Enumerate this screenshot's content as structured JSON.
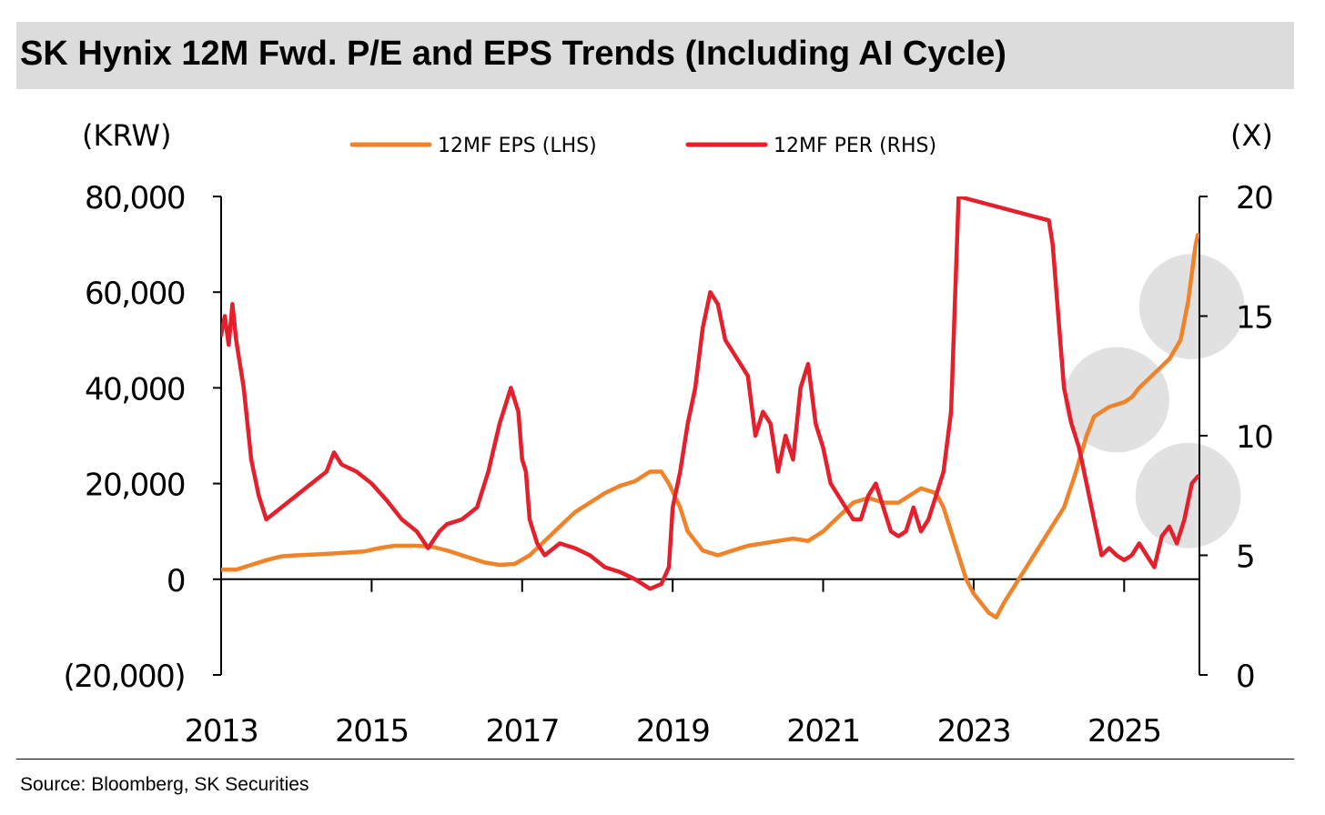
{
  "title": "SK Hynix 12M Fwd. P/E and EPS Trends (Including AI Cycle)",
  "source": "Source: Bloomberg, SK Securities",
  "colors": {
    "eps": "#f0822a",
    "per": "#e3202c",
    "highlight": "#c8c8c8"
  },
  "chart_data": {
    "type": "line",
    "title": "SK Hynix 12M Fwd. P/E and EPS Trends (Including AI Cycle)",
    "left_axis": {
      "unit_label": "(KRW)",
      "range": [
        -20000,
        80000
      ],
      "tick_values": [
        -20000,
        0,
        20000,
        40000,
        60000,
        80000
      ],
      "tick_labels": [
        "(20,000)",
        "0",
        "20,000",
        "40,000",
        "60,000",
        "80,000"
      ]
    },
    "right_axis": {
      "unit_label": "(X)",
      "range": [
        0,
        20
      ],
      "tick_values": [
        0,
        5,
        10,
        15,
        20
      ],
      "tick_labels": [
        "0",
        "5",
        "10",
        "15",
        "20"
      ]
    },
    "x_axis": {
      "range": [
        2013.0,
        2026.0
      ],
      "tick_values": [
        2013,
        2015,
        2017,
        2019,
        2021,
        2023,
        2025
      ],
      "tick_labels": [
        "2013",
        "2015",
        "2017",
        "2019",
        "2021",
        "2023",
        "2025"
      ]
    },
    "legend": [
      "12MF EPS (LHS)",
      "12MF PER (RHS)"
    ],
    "legend_position": "top-center",
    "series": [
      {
        "name": "12MF EPS (LHS)",
        "axis": "left",
        "points": [
          [
            2013.0,
            2000
          ],
          [
            2013.2,
            2000
          ],
          [
            2013.4,
            3000
          ],
          [
            2013.6,
            4000
          ],
          [
            2013.8,
            4800
          ],
          [
            2014.0,
            5000
          ],
          [
            2014.3,
            5200
          ],
          [
            2014.6,
            5500
          ],
          [
            2014.9,
            5800
          ],
          [
            2015.1,
            6500
          ],
          [
            2015.3,
            7000
          ],
          [
            2015.6,
            7000
          ],
          [
            2015.8,
            6800
          ],
          [
            2016.0,
            6000
          ],
          [
            2016.3,
            4500
          ],
          [
            2016.5,
            3500
          ],
          [
            2016.7,
            3000
          ],
          [
            2016.9,
            3200
          ],
          [
            2017.1,
            5000
          ],
          [
            2017.3,
            8000
          ],
          [
            2017.5,
            11000
          ],
          [
            2017.7,
            14000
          ],
          [
            2017.9,
            16000
          ],
          [
            2018.1,
            18000
          ],
          [
            2018.3,
            19500
          ],
          [
            2018.5,
            20500
          ],
          [
            2018.7,
            22500
          ],
          [
            2018.85,
            22500
          ],
          [
            2018.95,
            20000
          ],
          [
            2019.1,
            15000
          ],
          [
            2019.2,
            10000
          ],
          [
            2019.4,
            6000
          ],
          [
            2019.6,
            5000
          ],
          [
            2019.8,
            6000
          ],
          [
            2020.0,
            7000
          ],
          [
            2020.2,
            7500
          ],
          [
            2020.4,
            8000
          ],
          [
            2020.6,
            8500
          ],
          [
            2020.8,
            8000
          ],
          [
            2021.0,
            10000
          ],
          [
            2021.2,
            13000
          ],
          [
            2021.4,
            16000
          ],
          [
            2021.6,
            17000
          ],
          [
            2021.8,
            16000
          ],
          [
            2022.0,
            16000
          ],
          [
            2022.2,
            18000
          ],
          [
            2022.3,
            19000
          ],
          [
            2022.5,
            18000
          ],
          [
            2022.6,
            15000
          ],
          [
            2022.7,
            10000
          ],
          [
            2022.8,
            5000
          ],
          [
            2022.9,
            0
          ],
          [
            2023.0,
            -3000
          ],
          [
            2023.1,
            -5000
          ],
          [
            2023.2,
            -7000
          ],
          [
            2023.3,
            -8000
          ],
          [
            2023.4,
            -5000
          ],
          [
            2023.6,
            0
          ],
          [
            2023.8,
            5000
          ],
          [
            2024.0,
            10000
          ],
          [
            2024.2,
            15000
          ],
          [
            2024.35,
            22000
          ],
          [
            2024.5,
            30000
          ],
          [
            2024.6,
            34000
          ],
          [
            2024.8,
            36000
          ],
          [
            2025.0,
            37000
          ],
          [
            2025.1,
            38000
          ],
          [
            2025.2,
            40000
          ],
          [
            2025.4,
            43000
          ],
          [
            2025.6,
            46000
          ],
          [
            2025.75,
            50000
          ],
          [
            2025.85,
            58000
          ],
          [
            2025.95,
            70000
          ],
          [
            2025.98,
            72000
          ]
        ]
      },
      {
        "name": "12MF PER (RHS)",
        "axis": "right",
        "points": [
          [
            2013.0,
            14.2
          ],
          [
            2013.05,
            15.0
          ],
          [
            2013.1,
            13.8
          ],
          [
            2013.15,
            15.5
          ],
          [
            2013.2,
            14.0
          ],
          [
            2013.3,
            12.0
          ],
          [
            2013.4,
            9.0
          ],
          [
            2013.5,
            7.5
          ],
          [
            2013.6,
            6.5
          ],
          [
            2013.8,
            7.0
          ],
          [
            2014.0,
            7.5
          ],
          [
            2014.2,
            8.0
          ],
          [
            2014.4,
            8.5
          ],
          [
            2014.5,
            9.3
          ],
          [
            2014.6,
            8.8
          ],
          [
            2014.8,
            8.5
          ],
          [
            2015.0,
            8.0
          ],
          [
            2015.2,
            7.3
          ],
          [
            2015.4,
            6.5
          ],
          [
            2015.6,
            6.0
          ],
          [
            2015.75,
            5.3
          ],
          [
            2015.9,
            6.0
          ],
          [
            2016.0,
            6.3
          ],
          [
            2016.2,
            6.5
          ],
          [
            2016.4,
            7.0
          ],
          [
            2016.55,
            8.5
          ],
          [
            2016.7,
            10.5
          ],
          [
            2016.85,
            12.0
          ],
          [
            2016.95,
            11.0
          ],
          [
            2017.0,
            9.0
          ],
          [
            2017.05,
            8.5
          ],
          [
            2017.1,
            6.5
          ],
          [
            2017.2,
            5.5
          ],
          [
            2017.3,
            5.0
          ],
          [
            2017.5,
            5.5
          ],
          [
            2017.7,
            5.3
          ],
          [
            2017.9,
            5.0
          ],
          [
            2018.1,
            4.5
          ],
          [
            2018.3,
            4.3
          ],
          [
            2018.5,
            4.0
          ],
          [
            2018.7,
            3.6
          ],
          [
            2018.85,
            3.8
          ],
          [
            2018.95,
            4.5
          ],
          [
            2019.0,
            7.0
          ],
          [
            2019.1,
            8.5
          ],
          [
            2019.2,
            10.5
          ],
          [
            2019.3,
            12.0
          ],
          [
            2019.4,
            14.5
          ],
          [
            2019.5,
            16.0
          ],
          [
            2019.6,
            15.5
          ],
          [
            2019.7,
            14.0
          ],
          [
            2019.8,
            13.5
          ],
          [
            2019.9,
            13.0
          ],
          [
            2020.0,
            12.5
          ],
          [
            2020.1,
            10.0
          ],
          [
            2020.2,
            11.0
          ],
          [
            2020.3,
            10.5
          ],
          [
            2020.4,
            8.5
          ],
          [
            2020.5,
            10.0
          ],
          [
            2020.6,
            9.0
          ],
          [
            2020.7,
            12.0
          ],
          [
            2020.8,
            13.0
          ],
          [
            2020.9,
            10.5
          ],
          [
            2021.0,
            9.5
          ],
          [
            2021.1,
            8.0
          ],
          [
            2021.3,
            7.0
          ],
          [
            2021.4,
            6.5
          ],
          [
            2021.5,
            6.5
          ],
          [
            2021.6,
            7.5
          ],
          [
            2021.7,
            8.0
          ],
          [
            2021.8,
            7.0
          ],
          [
            2021.9,
            6.0
          ],
          [
            2022.0,
            5.8
          ],
          [
            2022.1,
            6.0
          ],
          [
            2022.2,
            7.0
          ],
          [
            2022.3,
            6.0
          ],
          [
            2022.4,
            6.5
          ],
          [
            2022.5,
            7.5
          ],
          [
            2022.6,
            8.5
          ],
          [
            2022.7,
            11.0
          ],
          [
            2022.8,
            20.0
          ],
          [
            2024.0,
            19.0
          ],
          [
            2024.05,
            18.0
          ],
          [
            2024.1,
            16.0
          ],
          [
            2024.15,
            14.0
          ],
          [
            2024.2,
            12.0
          ],
          [
            2024.3,
            10.5
          ],
          [
            2024.4,
            9.5
          ],
          [
            2024.5,
            8.0
          ],
          [
            2024.6,
            6.5
          ],
          [
            2024.7,
            5.0
          ],
          [
            2024.8,
            5.3
          ],
          [
            2024.9,
            5.0
          ],
          [
            2025.0,
            4.8
          ],
          [
            2025.1,
            5.0
          ],
          [
            2025.2,
            5.5
          ],
          [
            2025.3,
            5.0
          ],
          [
            2025.4,
            4.5
          ],
          [
            2025.5,
            5.8
          ],
          [
            2025.6,
            6.2
          ],
          [
            2025.7,
            5.5
          ],
          [
            2025.8,
            6.5
          ],
          [
            2025.9,
            8.0
          ],
          [
            2025.98,
            8.3
          ]
        ]
      }
    ],
    "highlight_circles": [
      {
        "x": 2025.9,
        "y_right": 15.4,
        "radius_x_years": 0.5
      },
      {
        "x": 2024.9,
        "y_right": 11.5,
        "radius_x_years": 0.5
      },
      {
        "x": 2025.85,
        "y_right": 7.5,
        "radius_x_years": 0.5
      }
    ]
  }
}
